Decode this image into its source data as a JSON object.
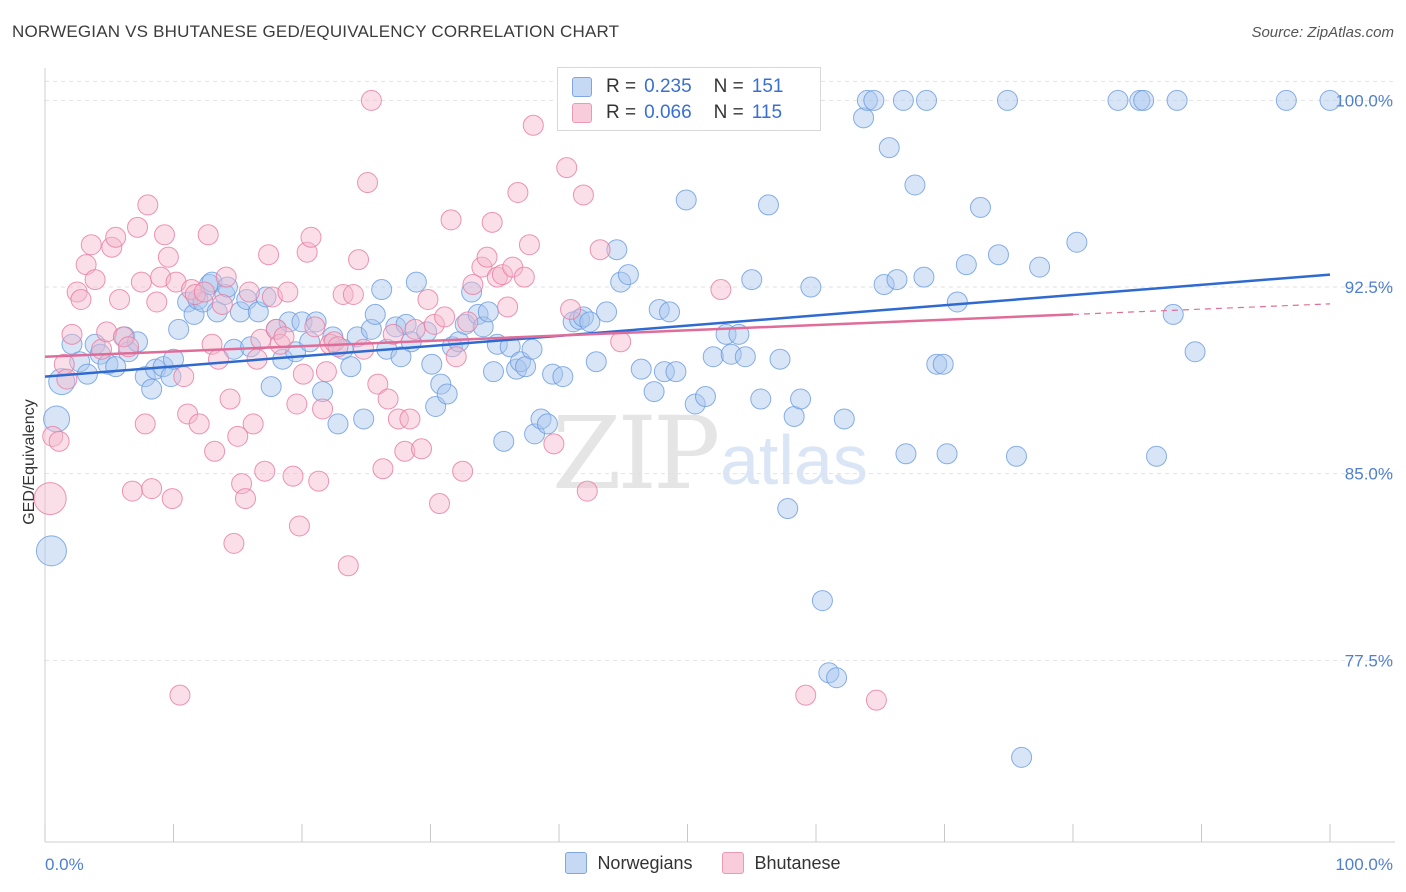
{
  "title": "NORWEGIAN VS BHUTANESE GED/EQUIVALENCY CORRELATION CHART",
  "source": "Source: ZipAtlas.com",
  "watermark": {
    "zip": "ZIP",
    "atlas": "atlas"
  },
  "legend": {
    "r_label": "R =",
    "n_label": "N =",
    "norwegians": {
      "r": "0.235",
      "n": "151",
      "color": "#a8c6ee"
    },
    "bhutanese": {
      "r": "0.066",
      "n": "115",
      "color": "#f4b8cc"
    }
  },
  "bottom_legend": {
    "norwegians": "Norwegians",
    "bhutanese": "Bhutanese"
  },
  "chart_data": {
    "type": "scatter",
    "title": "NORWEGIAN VS BHUTANESE GED/EQUIVALENCY CORRELATION CHART",
    "xlabel": "",
    "ylabel": "GED/Equivalency",
    "xlim": [
      0,
      100
    ],
    "ylim": [
      70.2,
      100.9
    ],
    "x_tick_labels": [
      "0.0%",
      "100.0%"
    ],
    "y_ticks": [
      77.5,
      85.0,
      92.5,
      100.0
    ],
    "y_tick_labels": [
      "77.5%",
      "85.0%",
      "92.5%",
      "100.0%"
    ],
    "grid": "horizontal dashed",
    "series": [
      {
        "name": "Norwegians",
        "color": "#6a9be0",
        "fill": "#a8c6ee",
        "trend": {
          "x0": 0,
          "y0": 88.9,
          "x1": 100,
          "y1": 93.0
        },
        "points": [
          [
            1.3,
            88.7
          ],
          [
            0.9,
            87.2
          ],
          [
            0.5,
            81.9
          ],
          [
            2.1,
            90.2
          ],
          [
            2.7,
            89.5
          ],
          [
            3.3,
            89.0
          ],
          [
            3.9,
            90.2
          ],
          [
            4.3,
            89.8
          ],
          [
            4.9,
            89.4
          ],
          [
            5.5,
            89.3
          ],
          [
            6.2,
            90.5
          ],
          [
            6.5,
            89.9
          ],
          [
            7.2,
            90.3
          ],
          [
            7.8,
            88.9
          ],
          [
            8.3,
            88.4
          ],
          [
            8.6,
            89.2
          ],
          [
            9.2,
            89.3
          ],
          [
            9.8,
            88.9
          ],
          [
            10.0,
            89.6
          ],
          [
            10.4,
            90.8
          ],
          [
            11.1,
            91.9
          ],
          [
            11.6,
            91.4
          ],
          [
            11.9,
            92.0
          ],
          [
            12.3,
            91.9
          ],
          [
            12.8,
            92.6
          ],
          [
            13.0,
            92.7
          ],
          [
            13.4,
            91.5
          ],
          [
            14.0,
            92.2
          ],
          [
            14.2,
            92.5
          ],
          [
            14.7,
            90.0
          ],
          [
            15.2,
            91.5
          ],
          [
            15.7,
            92.0
          ],
          [
            16.0,
            90.1
          ],
          [
            16.6,
            91.5
          ],
          [
            17.2,
            92.1
          ],
          [
            17.6,
            88.5
          ],
          [
            18.0,
            90.8
          ],
          [
            18.5,
            89.6
          ],
          [
            19.0,
            91.1
          ],
          [
            19.5,
            89.9
          ],
          [
            20.0,
            91.1
          ],
          [
            20.6,
            90.3
          ],
          [
            21.1,
            91.1
          ],
          [
            21.6,
            88.3
          ],
          [
            22.4,
            90.5
          ],
          [
            22.8,
            87.0
          ],
          [
            23.2,
            90.0
          ],
          [
            23.8,
            89.3
          ],
          [
            24.3,
            90.5
          ],
          [
            24.8,
            87.2
          ],
          [
            25.4,
            90.8
          ],
          [
            25.7,
            91.4
          ],
          [
            26.2,
            92.4
          ],
          [
            26.6,
            90.0
          ],
          [
            27.3,
            90.9
          ],
          [
            27.7,
            89.7
          ],
          [
            28.1,
            91.0
          ],
          [
            28.5,
            90.3
          ],
          [
            28.9,
            92.7
          ],
          [
            29.7,
            90.7
          ],
          [
            30.1,
            89.4
          ],
          [
            30.4,
            87.7
          ],
          [
            30.8,
            88.6
          ],
          [
            31.3,
            88.2
          ],
          [
            31.7,
            90.1
          ],
          [
            32.2,
            90.3
          ],
          [
            32.7,
            91.0
          ],
          [
            33.2,
            92.3
          ],
          [
            33.7,
            91.4
          ],
          [
            34.1,
            90.9
          ],
          [
            34.5,
            91.5
          ],
          [
            34.9,
            89.1
          ],
          [
            35.2,
            90.2
          ],
          [
            35.7,
            86.3
          ],
          [
            36.2,
            90.1
          ],
          [
            36.7,
            89.2
          ],
          [
            37.0,
            89.5
          ],
          [
            37.4,
            89.3
          ],
          [
            37.9,
            90.0
          ],
          [
            38.1,
            86.6
          ],
          [
            38.6,
            87.2
          ],
          [
            39.1,
            87.0
          ],
          [
            39.5,
            89.0
          ],
          [
            40.3,
            88.9
          ],
          [
            41.1,
            91.1
          ],
          [
            41.6,
            91.2
          ],
          [
            41.9,
            91.3
          ],
          [
            42.4,
            91.1
          ],
          [
            42.9,
            89.5
          ],
          [
            43.7,
            91.5
          ],
          [
            44.5,
            94.0
          ],
          [
            44.8,
            92.7
          ],
          [
            45.4,
            93.0
          ],
          [
            46.4,
            89.2
          ],
          [
            47.4,
            88.3
          ],
          [
            47.8,
            91.6
          ],
          [
            48.2,
            89.1
          ],
          [
            48.6,
            91.5
          ],
          [
            49.1,
            89.1
          ],
          [
            49.9,
            96.0
          ],
          [
            50.6,
            87.8
          ],
          [
            51.4,
            88.1
          ],
          [
            52.0,
            89.7
          ],
          [
            53.0,
            90.6
          ],
          [
            53.4,
            89.8
          ],
          [
            54.0,
            90.6
          ],
          [
            54.5,
            89.7
          ],
          [
            55.0,
            92.8
          ],
          [
            55.7,
            88.0
          ],
          [
            56.3,
            95.8
          ],
          [
            57.2,
            89.6
          ],
          [
            57.6,
            100.0
          ],
          [
            57.8,
            83.6
          ],
          [
            58.3,
            87.3
          ],
          [
            58.8,
            88.0
          ],
          [
            59.6,
            92.5
          ],
          [
            60.5,
            79.9
          ],
          [
            61.0,
            77.0
          ],
          [
            61.6,
            76.8
          ],
          [
            62.2,
            87.2
          ],
          [
            63.7,
            99.3
          ],
          [
            64.0,
            100.0
          ],
          [
            64.5,
            100.0
          ],
          [
            65.3,
            92.6
          ],
          [
            65.7,
            98.1
          ],
          [
            66.3,
            92.8
          ],
          [
            66.8,
            100.0
          ],
          [
            67.0,
            85.8
          ],
          [
            67.7,
            96.6
          ],
          [
            68.4,
            92.9
          ],
          [
            68.6,
            100.0
          ],
          [
            69.4,
            89.4
          ],
          [
            69.9,
            89.4
          ],
          [
            70.2,
            85.8
          ],
          [
            71.0,
            91.9
          ],
          [
            71.7,
            93.4
          ],
          [
            72.8,
            95.7
          ],
          [
            74.2,
            93.8
          ],
          [
            74.9,
            100.0
          ],
          [
            75.6,
            85.7
          ],
          [
            76.0,
            73.6
          ],
          [
            77.4,
            93.3
          ],
          [
            80.3,
            94.3
          ],
          [
            83.5,
            100.0
          ],
          [
            85.2,
            100.0
          ],
          [
            85.5,
            100.0
          ],
          [
            86.5,
            85.7
          ],
          [
            87.8,
            91.4
          ],
          [
            88.1,
            100.0
          ],
          [
            89.5,
            89.9
          ],
          [
            96.6,
            100.0
          ],
          [
            100.0,
            100.0
          ]
        ]
      },
      {
        "name": "Bhutanese",
        "color": "#e87aa0",
        "fill": "#f4b8cc",
        "trend": {
          "x0": 0,
          "y0": 89.7,
          "x1": 80,
          "y1": 91.4
        },
        "points": [
          [
            0.4,
            84.0
          ],
          [
            0.6,
            86.5
          ],
          [
            1.1,
            86.3
          ],
          [
            1.5,
            89.4
          ],
          [
            1.7,
            88.8
          ],
          [
            2.1,
            90.6
          ],
          [
            2.5,
            92.3
          ],
          [
            2.8,
            92.0
          ],
          [
            3.2,
            93.4
          ],
          [
            3.6,
            94.2
          ],
          [
            3.9,
            92.8
          ],
          [
            4.4,
            90.0
          ],
          [
            4.8,
            90.7
          ],
          [
            5.2,
            94.1
          ],
          [
            5.5,
            94.5
          ],
          [
            5.8,
            92.0
          ],
          [
            6.1,
            90.5
          ],
          [
            6.5,
            90.1
          ],
          [
            6.8,
            84.3
          ],
          [
            7.2,
            94.9
          ],
          [
            7.5,
            92.7
          ],
          [
            7.8,
            87.0
          ],
          [
            8.0,
            95.8
          ],
          [
            8.3,
            84.4
          ],
          [
            8.7,
            91.9
          ],
          [
            9.0,
            92.9
          ],
          [
            9.3,
            94.6
          ],
          [
            9.6,
            93.7
          ],
          [
            9.9,
            84.0
          ],
          [
            10.2,
            92.7
          ],
          [
            10.5,
            76.1
          ],
          [
            10.8,
            88.9
          ],
          [
            11.1,
            87.4
          ],
          [
            11.4,
            92.4
          ],
          [
            11.7,
            92.2
          ],
          [
            12.0,
            87.0
          ],
          [
            12.4,
            92.3
          ],
          [
            12.7,
            94.6
          ],
          [
            13.0,
            90.2
          ],
          [
            13.2,
            85.9
          ],
          [
            13.5,
            89.6
          ],
          [
            13.8,
            91.8
          ],
          [
            14.1,
            92.9
          ],
          [
            14.4,
            88.0
          ],
          [
            14.7,
            82.2
          ],
          [
            15.0,
            86.5
          ],
          [
            15.3,
            84.6
          ],
          [
            15.6,
            84.0
          ],
          [
            15.9,
            92.3
          ],
          [
            16.2,
            87.0
          ],
          [
            16.5,
            89.6
          ],
          [
            16.8,
            90.4
          ],
          [
            17.1,
            85.1
          ],
          [
            17.4,
            93.8
          ],
          [
            17.7,
            92.1
          ],
          [
            18.0,
            90.8
          ],
          [
            18.3,
            90.2
          ],
          [
            18.6,
            90.5
          ],
          [
            18.9,
            92.3
          ],
          [
            19.3,
            84.9
          ],
          [
            19.6,
            87.8
          ],
          [
            19.8,
            82.9
          ],
          [
            20.1,
            89.0
          ],
          [
            20.4,
            93.9
          ],
          [
            20.7,
            94.5
          ],
          [
            21.0,
            90.9
          ],
          [
            21.3,
            84.7
          ],
          [
            21.6,
            87.6
          ],
          [
            21.9,
            89.1
          ],
          [
            22.2,
            90.2
          ],
          [
            22.5,
            90.3
          ],
          [
            22.8,
            90.1
          ],
          [
            23.2,
            92.2
          ],
          [
            23.6,
            81.3
          ],
          [
            24.0,
            92.2
          ],
          [
            24.4,
            93.6
          ],
          [
            24.8,
            90.0
          ],
          [
            25.1,
            96.7
          ],
          [
            25.4,
            100.0
          ],
          [
            25.9,
            88.6
          ],
          [
            26.3,
            85.2
          ],
          [
            26.7,
            88.0
          ],
          [
            27.1,
            90.6
          ],
          [
            27.5,
            87.2
          ],
          [
            28.0,
            85.9
          ],
          [
            28.4,
            87.2
          ],
          [
            28.8,
            90.8
          ],
          [
            29.3,
            86.0
          ],
          [
            29.8,
            92.0
          ],
          [
            30.3,
            91.0
          ],
          [
            30.7,
            83.8
          ],
          [
            31.1,
            91.3
          ],
          [
            31.6,
            95.2
          ],
          [
            32.0,
            89.7
          ],
          [
            32.5,
            85.1
          ],
          [
            32.9,
            91.1
          ],
          [
            33.3,
            92.6
          ],
          [
            34.0,
            93.3
          ],
          [
            34.4,
            93.7
          ],
          [
            34.8,
            95.1
          ],
          [
            35.2,
            92.9
          ],
          [
            35.6,
            93.0
          ],
          [
            36.0,
            91.7
          ],
          [
            36.4,
            93.3
          ],
          [
            36.8,
            96.3
          ],
          [
            37.3,
            92.9
          ],
          [
            37.7,
            94.2
          ],
          [
            38.0,
            99.0
          ],
          [
            39.6,
            86.2
          ],
          [
            40.6,
            97.3
          ],
          [
            40.9,
            91.6
          ],
          [
            41.9,
            96.2
          ],
          [
            42.2,
            84.3
          ],
          [
            43.2,
            94.0
          ],
          [
            44.8,
            90.3
          ],
          [
            52.6,
            92.4
          ],
          [
            59.2,
            76.1
          ],
          [
            64.7,
            75.9
          ]
        ]
      }
    ]
  }
}
